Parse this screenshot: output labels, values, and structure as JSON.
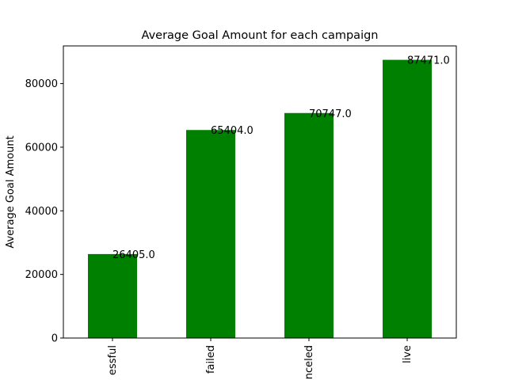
{
  "chart_data": {
    "type": "bar",
    "title": "Average Goal Amount for each campaign",
    "xlabel": "",
    "ylabel": "Average Goal Amount",
    "categories": [
      "essful",
      "failed",
      "nceled",
      "live"
    ],
    "values": [
      26405.0,
      65404.0,
      70747.0,
      87471.0
    ],
    "data_labels": [
      "26405.0",
      "65404.0",
      "70747.0",
      "87471.0"
    ],
    "yticks": [
      0,
      20000,
      40000,
      60000,
      80000
    ],
    "ytick_labels": [
      "0",
      "20000",
      "40000",
      "60000",
      "80000"
    ],
    "ylim": [
      0,
      91844.55
    ],
    "bar_color": "#008000",
    "grid": false,
    "legend": "none"
  }
}
